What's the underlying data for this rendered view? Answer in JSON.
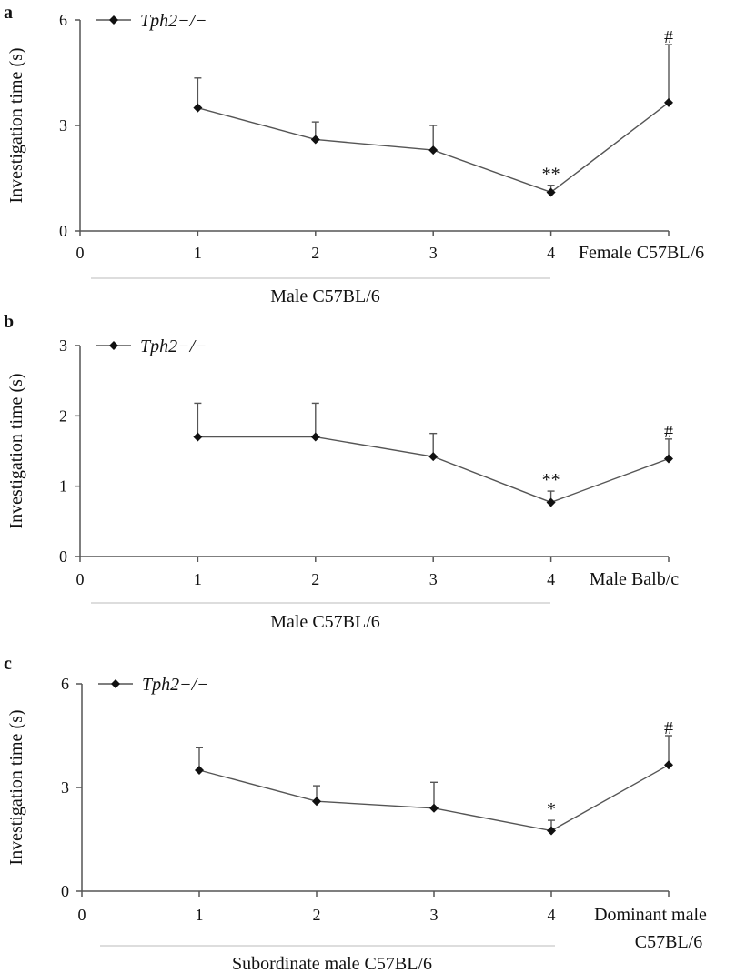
{
  "colors": {
    "line": "#555555",
    "marker": "#111111",
    "axis": "#555555",
    "group_line": "#bbbbbb",
    "background": "#ffffff"
  },
  "chart_data": [
    {
      "type": "line",
      "panel_label": "a",
      "ylabel": "Investigation time (s)",
      "ylim": [
        0,
        6
      ],
      "yticks": [
        "0",
        "3",
        "6"
      ],
      "xlim": [
        0,
        5
      ],
      "xticks": [
        "0",
        "1",
        "2",
        "3",
        "4"
      ],
      "legend": {
        "label": "Tph2−/−",
        "position": "top-left"
      },
      "series": [
        {
          "name": "Tph2−/−",
          "x": [
            1,
            2,
            3,
            4,
            5
          ],
          "y": [
            3.5,
            2.6,
            2.3,
            1.1,
            3.65
          ],
          "error": [
            0.85,
            0.5,
            0.7,
            0.2,
            1.65
          ],
          "annotations": [
            "",
            "",
            "",
            "**",
            "#"
          ]
        }
      ],
      "group_label": "Male C57BL/6",
      "final_label": [
        "Female C57BL/6"
      ]
    },
    {
      "type": "line",
      "panel_label": "b",
      "ylabel": "Investigation time (s)",
      "ylim": [
        0,
        3
      ],
      "yticks": [
        "0",
        "1",
        "2",
        "3"
      ],
      "xlim": [
        0,
        5
      ],
      "xticks": [
        "0",
        "1",
        "2",
        "3",
        "4"
      ],
      "legend": {
        "label": "Tph2−/−",
        "position": "top-left"
      },
      "series": [
        {
          "name": "Tph2−/−",
          "x": [
            1,
            2,
            3,
            4,
            5
          ],
          "y": [
            1.7,
            1.7,
            1.42,
            0.77,
            1.39
          ],
          "error": [
            0.48,
            0.48,
            0.33,
            0.16,
            0.28
          ],
          "annotations": [
            "",
            "",
            "",
            "**",
            "#"
          ]
        }
      ],
      "group_label": "Male C57BL/6",
      "final_label": [
        "Male Balb/c"
      ]
    },
    {
      "type": "line",
      "panel_label": "c",
      "ylabel": "Investigation time (s)",
      "ylim": [
        0,
        6
      ],
      "yticks": [
        "0",
        "3",
        "6"
      ],
      "xlim": [
        0,
        5
      ],
      "xticks": [
        "0",
        "1",
        "2",
        "3",
        "4"
      ],
      "legend": {
        "label": "Tph2−/−",
        "position": "top-left"
      },
      "series": [
        {
          "name": "Tph2−/−",
          "x": [
            1,
            2,
            3,
            4,
            5
          ],
          "y": [
            3.5,
            2.6,
            2.4,
            1.75,
            3.65
          ],
          "error": [
            0.65,
            0.45,
            0.75,
            0.3,
            0.85
          ],
          "annotations": [
            "",
            "",
            "",
            "*",
            "#"
          ]
        }
      ],
      "group_label": "Subordinate male C57BL/6",
      "final_label": [
        "Dominant male",
        "C57BL/6"
      ]
    }
  ]
}
